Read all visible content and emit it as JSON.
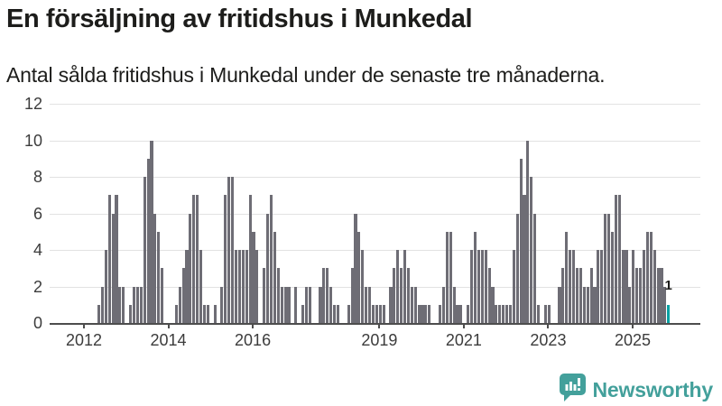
{
  "header": {
    "title": "En försäljning av fritidshus i Munkedal",
    "subtitle": "Antal sålda fritidshus i Munkedal under de senaste tre månaderna."
  },
  "chart_data": {
    "type": "bar",
    "title": "En försäljning av fritidshus i Munkedal",
    "subtitle": "Antal sålda fritidshus i Munkedal under de senaste tre månaderna.",
    "start_month": "2012-05",
    "end_month": "2025-11",
    "values": [
      1,
      2,
      4,
      7,
      6,
      7,
      2,
      2,
      0,
      1,
      2,
      2,
      2,
      8,
      9,
      10,
      6,
      5,
      3,
      0,
      0,
      0,
      1,
      2,
      3,
      4,
      6,
      7,
      7,
      4,
      1,
      1,
      0,
      1,
      0,
      2,
      7,
      8,
      8,
      4,
      4,
      4,
      4,
      7,
      5,
      4,
      0,
      3,
      6,
      7,
      5,
      3,
      2,
      2,
      2,
      0,
      2,
      0,
      1,
      2,
      2,
      0,
      0,
      2,
      3,
      3,
      2,
      1,
      1,
      0,
      0,
      1,
      3,
      6,
      5,
      4,
      2,
      2,
      1,
      1,
      1,
      1,
      0,
      2,
      3,
      4,
      3,
      4,
      3,
      2,
      2,
      1,
      1,
      1,
      1,
      0,
      0,
      1,
      2,
      5,
      5,
      2,
      1,
      1,
      0,
      1,
      4,
      5,
      4,
      4,
      4,
      3,
      2,
      1,
      1,
      1,
      1,
      1,
      4,
      6,
      9,
      7,
      10,
      8,
      6,
      1,
      0,
      1,
      1,
      0,
      0,
      2,
      3,
      5,
      4,
      4,
      3,
      3,
      2,
      2,
      3,
      2,
      4,
      4,
      6,
      6,
      5,
      7,
      7,
      4,
      4,
      2,
      4,
      3,
      3,
      4,
      5,
      5,
      4,
      3,
      3,
      2,
      1
    ],
    "highlight_last": true,
    "last_value_label": "1",
    "ylim": [
      0,
      12
    ],
    "y_ticks": [
      0,
      2,
      4,
      6,
      8,
      10,
      12
    ],
    "x_tick_years": [
      "2012",
      "2014",
      "2016",
      "2019",
      "2021",
      "2023",
      "2025"
    ],
    "grid": true,
    "legend": "none",
    "colors": {
      "bar": "#6e6d75",
      "highlight": "#0aa2a4",
      "grid": "#e2e2e2",
      "axis": "#4d4d4d",
      "tick_label": "#3c3c3c"
    }
  },
  "footer": {
    "brand": "Newsworthy",
    "brand_color": "#43a09b",
    "logo_icon": "newsworthy-speech-bubble-chart-icon"
  }
}
